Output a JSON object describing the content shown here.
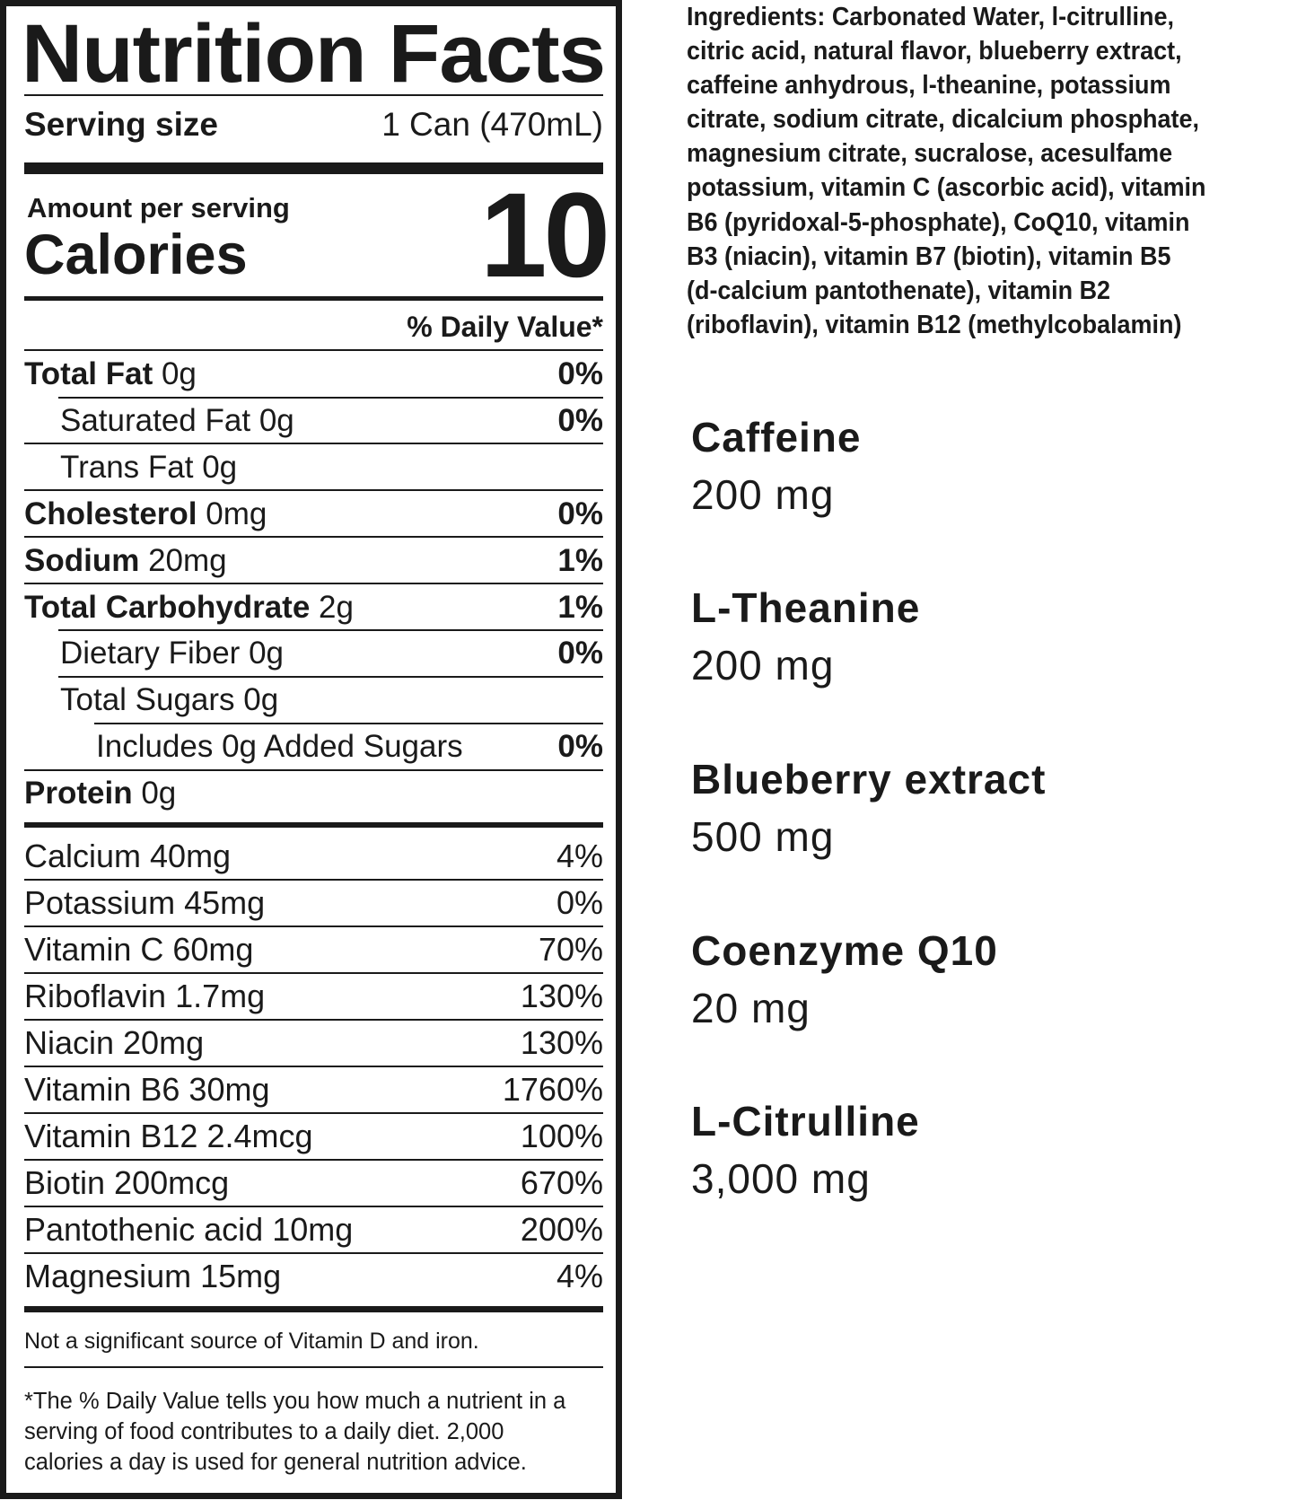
{
  "label": {
    "title": "Nutrition Facts",
    "serving_size_label": "Serving size",
    "serving_size_value": "1 Can (470mL)",
    "amount_per_serving": "Amount per serving",
    "calories_label": "Calories",
    "calories_value": "10",
    "daily_value_header": "% Daily Value*",
    "nutrients": [
      {
        "name": "Total Fat",
        "amount": "0g",
        "dv": "0%",
        "bold": true,
        "indent": 0
      },
      {
        "name": "Saturated Fat",
        "amount": "0g",
        "dv": "0%",
        "bold": false,
        "indent": 1
      },
      {
        "name": "Trans Fat",
        "amount": "0g",
        "dv": "",
        "bold": false,
        "indent": 1
      },
      {
        "name": "Cholesterol",
        "amount": "0mg",
        "dv": "0%",
        "bold": true,
        "indent": 0
      },
      {
        "name": "Sodium",
        "amount": "20mg",
        "dv": "1%",
        "bold": true,
        "indent": 0
      },
      {
        "name": "Total Carbohydrate",
        "amount": "2g",
        "dv": "1%",
        "bold": true,
        "indent": 0
      },
      {
        "name": "Dietary Fiber",
        "amount": "0g",
        "dv": "0%",
        "bold": false,
        "indent": 1
      },
      {
        "name": "Total Sugars",
        "amount": "0g",
        "dv": "",
        "bold": false,
        "indent": 1
      },
      {
        "name": "Includes 0g Added Sugars",
        "amount": "",
        "dv": "0%",
        "bold": false,
        "indent": 2
      },
      {
        "name": "Protein",
        "amount": "0g",
        "dv": "",
        "bold": true,
        "indent": 0
      }
    ],
    "vitamins": [
      {
        "name": "Calcium 40mg",
        "dv": "4%"
      },
      {
        "name": "Potassium 45mg",
        "dv": "0%"
      },
      {
        "name": "Vitamin C 60mg",
        "dv": "70%"
      },
      {
        "name": "Riboflavin 1.7mg",
        "dv": "130%"
      },
      {
        "name": "Niacin 20mg",
        "dv": "130%"
      },
      {
        "name": "Vitamin B6 30mg",
        "dv": "1760%"
      },
      {
        "name": "Vitamin B12 2.4mcg",
        "dv": "100%"
      },
      {
        "name": "Biotin 200mcg",
        "dv": "670%"
      },
      {
        "name": "Pantothenic acid 10mg",
        "dv": "200%"
      },
      {
        "name": "Magnesium 15mg",
        "dv": "4%"
      }
    ],
    "footnote_not_significant": "Not a significant source of Vitamin D and iron.",
    "footnote_dv": [
      "*The % Daily Value tells you how much a nutrient in a",
      "serving of food contributes to a daily diet. 2,000",
      "calories a day is used for general nutrition advice."
    ]
  },
  "ingredients": {
    "lines": [
      "Ingredients: Carbonated Water, l-citrulline,",
      "citric acid, natural flavor, blueberry extract,",
      "caffeine anhydrous, l-theanine, potassium",
      "citrate, sodium citrate, dicalcium phosphate,",
      "magnesium citrate, sucralose, acesulfame",
      "potassium, vitamin C (ascorbic acid), vitamin",
      "B6 (pyridoxal-5-phosphate), CoQ10, vitamin",
      "B3 (niacin), vitamin B7 (biotin), vitamin B5",
      "(d-calcium pantothenate), vitamin B2",
      "(riboflavin), vitamin B12 (methylcobalamin)"
    ]
  },
  "actives": [
    {
      "name": "Caffeine",
      "amount": "200 mg"
    },
    {
      "name": "L-Theanine",
      "amount": "200 mg"
    },
    {
      "name": "Blueberry extract",
      "amount": "500 mg"
    },
    {
      "name": "Coenzyme Q10",
      "amount": "20 mg"
    },
    {
      "name": "L-Citrulline",
      "amount": "3,000 mg"
    }
  ],
  "colors": {
    "ink": "#1a1a1a",
    "background": "#ffffff"
  }
}
